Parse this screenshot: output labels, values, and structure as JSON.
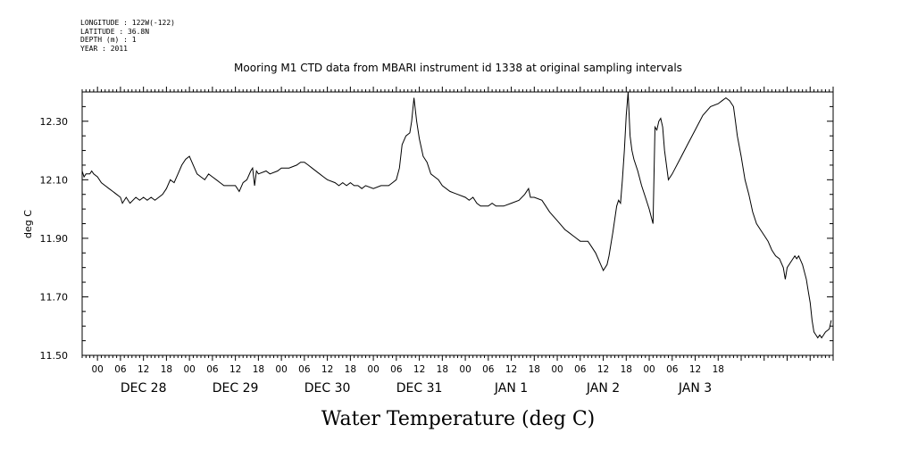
{
  "header": {
    "longitude": "LONGITUDE : 122W(-122)",
    "latitude": "LATITUDE : 36.8N",
    "depth": "DEPTH (m) : 1",
    "year": "YEAR : 2011"
  },
  "chart_data": {
    "type": "line",
    "title": "Mooring M1 CTD data from MBARI instrument id 1338 at original sampling intervals",
    "xlabel": "Water Temperature (deg C)",
    "ylabel": "deg C",
    "ylim": [
      11.5,
      12.4
    ],
    "y_ticks": [
      "12.30",
      "12.10",
      "11.90",
      "11.70",
      "11.50"
    ],
    "x_hour_ticks": [
      "00",
      "06",
      "12",
      "18",
      "00",
      "06",
      "12",
      "18",
      "00",
      "06",
      "12",
      "18",
      "00",
      "06",
      "12",
      "18",
      "00",
      "06",
      "12",
      "18",
      "00",
      "06",
      "12",
      "18",
      "00",
      "06",
      "12",
      "18"
    ],
    "x_day_labels": [
      "DEC 28",
      "DEC 29",
      "DEC 30",
      "DEC 31",
      "JAN  1",
      "JAN  2",
      "JAN  3"
    ],
    "x_range_hours": [
      -4,
      19.5
    ],
    "grid": false,
    "series": [
      {
        "color": "#000000",
        "points": [
          [
            -4.0,
            12.13
          ],
          [
            -3.5,
            12.11
          ],
          [
            -3.0,
            12.12
          ],
          [
            -2.0,
            12.12
          ],
          [
            -1.5,
            12.13
          ],
          [
            -1.0,
            12.12
          ],
          [
            0.0,
            12.11
          ],
          [
            1.0,
            12.09
          ],
          [
            2.0,
            12.08
          ],
          [
            3.0,
            12.07
          ],
          [
            4.0,
            12.06
          ],
          [
            5.0,
            12.05
          ],
          [
            6.0,
            12.04
          ],
          [
            6.5,
            12.02
          ],
          [
            7.5,
            12.04
          ],
          [
            8.5,
            12.02
          ],
          [
            10.0,
            12.04
          ],
          [
            11.0,
            12.03
          ],
          [
            12.0,
            12.04
          ],
          [
            13.0,
            12.03
          ],
          [
            14.0,
            12.04
          ],
          [
            15.0,
            12.03
          ],
          [
            16.0,
            12.04
          ],
          [
            17.0,
            12.05
          ],
          [
            18.0,
            12.07
          ],
          [
            19.0,
            12.1
          ],
          [
            20.0,
            12.09
          ],
          [
            21.0,
            12.12
          ],
          [
            22.0,
            12.15
          ],
          [
            23.0,
            12.17
          ],
          [
            24.0,
            12.18
          ],
          [
            25.0,
            12.15
          ],
          [
            26.0,
            12.12
          ],
          [
            27.0,
            12.11
          ],
          [
            28.0,
            12.1
          ],
          [
            29.0,
            12.12
          ],
          [
            30.0,
            12.11
          ],
          [
            31.0,
            12.1
          ],
          [
            32.0,
            12.09
          ],
          [
            33.0,
            12.08
          ],
          [
            34.0,
            12.08
          ],
          [
            36.0,
            12.08
          ],
          [
            37.0,
            12.06
          ],
          [
            38.0,
            12.09
          ],
          [
            39.0,
            12.1
          ],
          [
            40.0,
            12.13
          ],
          [
            40.5,
            12.14
          ],
          [
            41.0,
            12.08
          ],
          [
            41.5,
            12.13
          ],
          [
            42.0,
            12.12
          ],
          [
            44.0,
            12.13
          ],
          [
            45.0,
            12.12
          ],
          [
            47.0,
            12.13
          ],
          [
            48.0,
            12.14
          ],
          [
            50.0,
            12.14
          ],
          [
            52.0,
            12.15
          ],
          [
            53.0,
            12.16
          ],
          [
            54.0,
            12.16
          ],
          [
            55.0,
            12.15
          ],
          [
            56.0,
            12.14
          ],
          [
            58.0,
            12.12
          ],
          [
            59.0,
            12.11
          ],
          [
            60.0,
            12.1
          ],
          [
            62.0,
            12.09
          ],
          [
            63.0,
            12.08
          ],
          [
            64.0,
            12.09
          ],
          [
            65.0,
            12.08
          ],
          [
            66.0,
            12.09
          ],
          [
            67.0,
            12.08
          ],
          [
            68.0,
            12.08
          ],
          [
            69.0,
            12.07
          ],
          [
            70.0,
            12.08
          ],
          [
            72.0,
            12.07
          ],
          [
            74.0,
            12.08
          ],
          [
            76.0,
            12.08
          ],
          [
            77.0,
            12.09
          ],
          [
            78.0,
            12.1
          ],
          [
            78.8,
            12.14
          ],
          [
            79.5,
            12.22
          ],
          [
            80.5,
            12.25
          ],
          [
            81.5,
            12.26
          ],
          [
            82.0,
            12.3
          ],
          [
            82.6,
            12.38
          ],
          [
            83.3,
            12.3
          ],
          [
            84.0,
            12.24
          ],
          [
            85.0,
            12.18
          ],
          [
            86.0,
            12.16
          ],
          [
            87.0,
            12.12
          ],
          [
            88.0,
            12.11
          ],
          [
            89.0,
            12.1
          ],
          [
            90.0,
            12.08
          ],
          [
            92.0,
            12.06
          ],
          [
            94.0,
            12.05
          ],
          [
            96.0,
            12.04
          ],
          [
            97.0,
            12.03
          ],
          [
            98.0,
            12.04
          ],
          [
            99.0,
            12.02
          ],
          [
            100.0,
            12.01
          ],
          [
            102.0,
            12.01
          ],
          [
            103.0,
            12.02
          ],
          [
            104.0,
            12.01
          ],
          [
            106.0,
            12.01
          ],
          [
            108.0,
            12.02
          ],
          [
            110.0,
            12.03
          ],
          [
            111.5,
            12.05
          ],
          [
            112.5,
            12.07
          ],
          [
            113.0,
            12.04
          ],
          [
            114.0,
            12.04
          ],
          [
            116.0,
            12.03
          ],
          [
            117.0,
            12.01
          ],
          [
            118.0,
            11.99
          ],
          [
            120.0,
            11.96
          ],
          [
            122.0,
            11.93
          ],
          [
            123.0,
            11.92
          ],
          [
            124.0,
            11.91
          ],
          [
            125.0,
            11.9
          ],
          [
            126.0,
            11.89
          ],
          [
            128.0,
            11.89
          ],
          [
            129.0,
            11.87
          ],
          [
            130.0,
            11.85
          ],
          [
            131.0,
            11.82
          ],
          [
            132.0,
            11.79
          ],
          [
            133.0,
            11.81
          ],
          [
            133.5,
            11.84
          ],
          [
            134.5,
            11.92
          ],
          [
            135.5,
            12.01
          ],
          [
            136.0,
            12.03
          ],
          [
            136.5,
            12.02
          ],
          [
            137.0,
            12.1
          ],
          [
            137.5,
            12.2
          ],
          [
            138.0,
            12.32
          ],
          [
            138.5,
            12.4
          ],
          [
            139.0,
            12.25
          ],
          [
            139.5,
            12.2
          ],
          [
            140.0,
            12.17
          ],
          [
            141.0,
            12.13
          ],
          [
            142.0,
            12.08
          ],
          [
            143.0,
            12.04
          ],
          [
            144.0,
            12.0
          ],
          [
            145.0,
            11.95
          ],
          [
            145.5,
            12.28
          ],
          [
            146.0,
            12.27
          ],
          [
            146.5,
            12.3
          ],
          [
            147.0,
            12.31
          ],
          [
            147.5,
            12.28
          ],
          [
            148.0,
            12.2
          ],
          [
            149.0,
            12.1
          ],
          [
            150.0,
            12.12
          ],
          [
            152.0,
            12.17
          ],
          [
            154.0,
            12.22
          ],
          [
            156.0,
            12.27
          ],
          [
            158.0,
            12.32
          ],
          [
            160.0,
            12.35
          ],
          [
            162.0,
            12.36
          ],
          [
            163.0,
            12.37
          ],
          [
            164.0,
            12.38
          ],
          [
            165.0,
            12.37
          ],
          [
            166.0,
            12.35
          ],
          [
            166.5,
            12.3
          ],
          [
            167.0,
            12.25
          ],
          [
            168.0,
            12.18
          ],
          [
            169.0,
            12.1
          ],
          [
            170.0,
            12.05
          ],
          [
            171.0,
            11.99
          ],
          [
            172.0,
            11.95
          ],
          [
            173.0,
            11.93
          ],
          [
            174.0,
            11.91
          ],
          [
            175.0,
            11.89
          ],
          [
            176.0,
            11.86
          ],
          [
            177.0,
            11.84
          ],
          [
            178.0,
            11.83
          ],
          [
            179.0,
            11.8
          ],
          [
            179.5,
            11.76
          ],
          [
            180.0,
            11.8
          ],
          [
            181.0,
            11.82
          ],
          [
            182.0,
            11.84
          ],
          [
            182.5,
            11.83
          ],
          [
            183.0,
            11.84
          ],
          [
            184.0,
            11.81
          ],
          [
            185.0,
            11.76
          ],
          [
            185.5,
            11.72
          ],
          [
            186.0,
            11.68
          ],
          [
            186.5,
            11.62
          ],
          [
            187.0,
            11.58
          ],
          [
            187.5,
            11.57
          ],
          [
            188.0,
            11.56
          ],
          [
            188.5,
            11.57
          ],
          [
            189.0,
            11.56
          ],
          [
            189.5,
            11.57
          ],
          [
            190.0,
            11.58
          ],
          [
            191.0,
            11.59
          ],
          [
            191.5,
            11.62
          ]
        ]
      }
    ]
  }
}
